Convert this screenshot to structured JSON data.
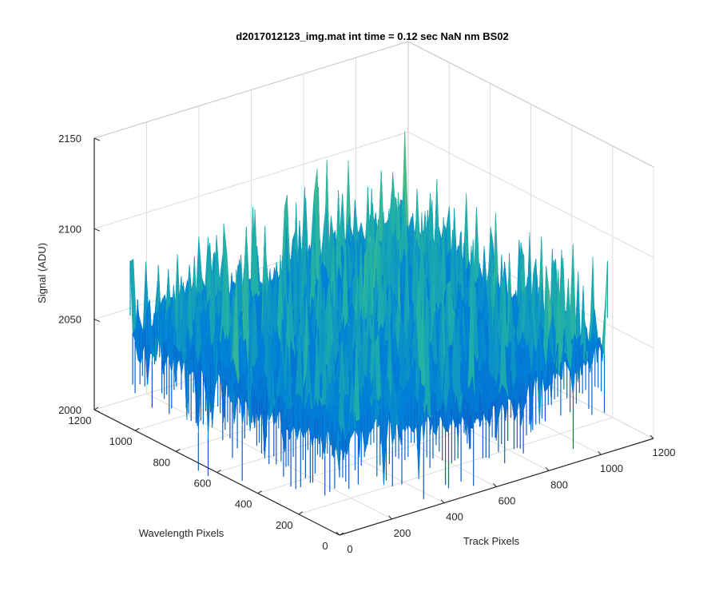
{
  "chart_data": {
    "type": "surface",
    "title": "d2017012123_img.mat int time = 0.12 sec  NaN nm BS02",
    "xlabel": "Track Pixels",
    "ylabel": "Wavelength Pixels",
    "zlabel": "Signal (ADU)",
    "xlim": [
      0,
      1200
    ],
    "ylim": [
      0,
      1200
    ],
    "zlim": [
      2000,
      2150
    ],
    "xticks": [
      "0",
      "200",
      "400",
      "600",
      "800",
      "1000",
      "1200"
    ],
    "yticks": [
      "0",
      "200",
      "400",
      "600",
      "800",
      "1000",
      "1200"
    ],
    "zticks": [
      "2000",
      "2050",
      "2100",
      "2150"
    ],
    "surface_extent": {
      "x": [
        0,
        1024
      ],
      "y": [
        0,
        1024
      ]
    },
    "signal_baseline": 2040,
    "signal_range": [
      2015,
      2135
    ],
    "grid": true,
    "colormap": "parula",
    "colors": {
      "low": "#0072bd",
      "mid": "#21b3a6",
      "high": "#e6c74b",
      "grid": "#dcdcdc",
      "axis": "#262626"
    }
  }
}
